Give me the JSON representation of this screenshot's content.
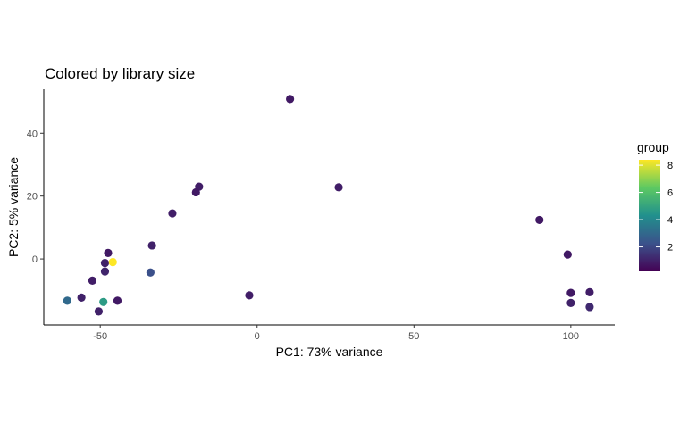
{
  "chart_data": {
    "type": "scatter",
    "title": "Colored by library size",
    "xlabel": "PC1: 73% variance",
    "ylabel": "PC2: 5% variance",
    "xlim": [
      -68,
      114
    ],
    "ylim": [
      -21,
      54
    ],
    "x_ticks": [
      -50,
      0,
      50,
      100
    ],
    "y_ticks": [
      0,
      20,
      40
    ],
    "grid": false,
    "legend": {
      "title": "group",
      "position": "right",
      "type": "colorbar",
      "range": [
        0.2,
        8.4
      ],
      "ticks": [
        2,
        4,
        6,
        8
      ],
      "colormap": "viridis"
    },
    "points": [
      {
        "x": 10.5,
        "y": 50.9,
        "group": 0.8
      },
      {
        "x": 26,
        "y": 22.8,
        "group": 0.9
      },
      {
        "x": -18.5,
        "y": 23,
        "group": 0.9
      },
      {
        "x": -19.5,
        "y": 21.2,
        "group": 0.8
      },
      {
        "x": -27,
        "y": 14.5,
        "group": 0.9
      },
      {
        "x": -33.5,
        "y": 4.3,
        "group": 1.0
      },
      {
        "x": -47.5,
        "y": 1.9,
        "group": 0.8
      },
      {
        "x": -48.5,
        "y": -1.3,
        "group": 1.0
      },
      {
        "x": -46,
        "y": -1.0,
        "group": 8.4
      },
      {
        "x": -48.5,
        "y": -4.0,
        "group": 1.1
      },
      {
        "x": -34,
        "y": -4.3,
        "group": 2.2
      },
      {
        "x": -52.5,
        "y": -6.9,
        "group": 0.9
      },
      {
        "x": -56,
        "y": -12.3,
        "group": 1.0
      },
      {
        "x": -60.5,
        "y": -13.3,
        "group": 3.0
      },
      {
        "x": -49,
        "y": -13.7,
        "group": 4.7
      },
      {
        "x": -44.5,
        "y": -13.3,
        "group": 0.8
      },
      {
        "x": -50.5,
        "y": -16.7,
        "group": 1.0
      },
      {
        "x": -2.5,
        "y": -11.6,
        "group": 0.9
      },
      {
        "x": 90,
        "y": 12.4,
        "group": 0.8
      },
      {
        "x": 99,
        "y": 1.4,
        "group": 0.8
      },
      {
        "x": 100,
        "y": -10.8,
        "group": 0.8
      },
      {
        "x": 106,
        "y": -10.6,
        "group": 0.9
      },
      {
        "x": 100,
        "y": -14.0,
        "group": 1.0
      },
      {
        "x": 106,
        "y": -15.3,
        "group": 1.2
      }
    ]
  }
}
